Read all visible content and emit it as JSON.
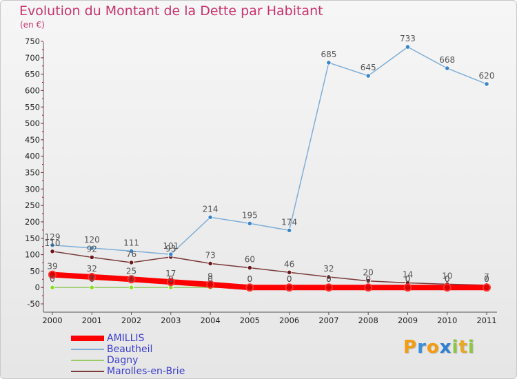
{
  "page": {
    "title": "Evolution du Montant de la Dette par Habitant",
    "unit": "(en €)",
    "logo": {
      "text": "Proxiti",
      "letters": [
        "P",
        "r",
        "o",
        "x",
        "i",
        "t",
        "i"
      ],
      "colors": [
        "#f39c12",
        "#3a8fd8",
        "#f39c12",
        "#2e7fd0",
        "#8dc63f",
        "#e7a823",
        "#8dc63f"
      ]
    }
  },
  "chart_data": {
    "type": "line",
    "title": "Evolution du Montant de la Dette par Habitant",
    "unit": "(en €)",
    "xlabel": "",
    "ylabel": "",
    "categories": [
      "2000",
      "2001",
      "2002",
      "2003",
      "2004",
      "2005",
      "2006",
      "2007",
      "2008",
      "2009",
      "2010",
      "2011"
    ],
    "ylim": [
      -50,
      750
    ],
    "yticks": [
      -50,
      0,
      50,
      100,
      150,
      200,
      250,
      300,
      350,
      400,
      450,
      500,
      550,
      600,
      650,
      700,
      750
    ],
    "grid": false,
    "legend_position": "bottom-left",
    "series": [
      {
        "name": "AMILLIS",
        "values": [
          39,
          32,
          25,
          17,
          9,
          0,
          0,
          0,
          0,
          0,
          0,
          0
        ],
        "color": "#ff0000",
        "width": 8,
        "marker_fill": "#dd0000",
        "label_color": "#555555",
        "label_values": true
      },
      {
        "name": "Beautheil",
        "values": [
          129,
          120,
          111,
          101,
          214,
          195,
          174,
          685,
          645,
          733,
          668,
          620
        ],
        "color": "#7eaed8",
        "width": 1.5,
        "marker_fill": "#3a86c8",
        "label_color": "#555555",
        "label_values": true
      },
      {
        "name": "Dagny",
        "values": [
          0,
          0,
          0,
          0,
          0,
          0,
          0,
          0,
          0,
          0,
          0,
          0
        ],
        "color": "#99cc66",
        "width": 1.5,
        "marker_fill": "#88dd22",
        "label_color": "#555555",
        "label_values": true
      },
      {
        "name": "Marolles-en-Brie",
        "values": [
          110,
          92,
          76,
          93,
          73,
          60,
          46,
          32,
          20,
          14,
          10,
          7
        ],
        "color": "#7a3a3a",
        "width": 1.5,
        "marker_fill": "#6a1a1a",
        "label_color": "#555555",
        "label_values": true
      }
    ]
  }
}
